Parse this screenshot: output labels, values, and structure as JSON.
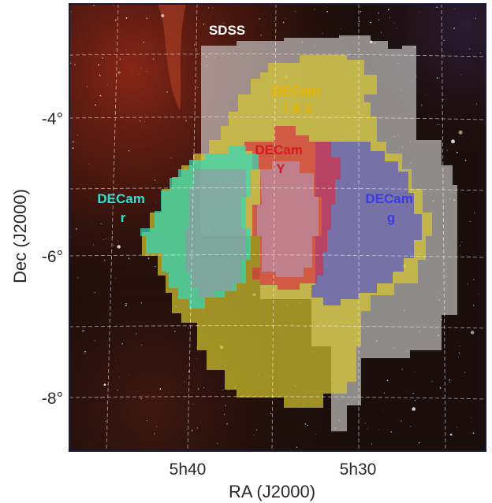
{
  "figure": {
    "x_axis_title": "RA (J2000)",
    "y_axis_title": "Dec (J2000)",
    "x_ticks": [
      "5h40",
      "5h30"
    ],
    "y_ticks": [
      "-4°",
      "-6°",
      "-8°"
    ]
  },
  "surveys": [
    {
      "id": "sdss",
      "lines": [
        "SDSS"
      ],
      "color": "#ffffff"
    },
    {
      "id": "iz",
      "lines": [
        "DECam",
        "i & z"
      ],
      "color": "#e8b400"
    },
    {
      "id": "Y",
      "lines": [
        "DECam",
        "Y"
      ],
      "color": "#d41820"
    },
    {
      "id": "r",
      "lines": [
        "DECam",
        "r"
      ],
      "color": "#2ee0d0"
    },
    {
      "id": "g",
      "lines": [
        "DECam",
        "g"
      ],
      "color": "#3a3ae8"
    }
  ],
  "background": {
    "sky_color": "#1a0e0a",
    "nebula_color": "#6a1e10"
  }
}
